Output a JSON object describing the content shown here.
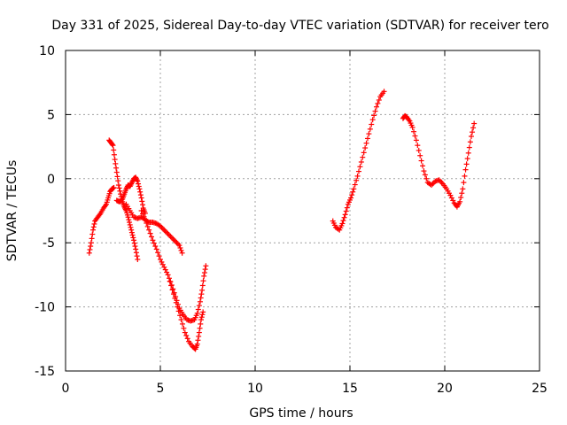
{
  "chart_data": {
    "type": "scatter",
    "title": "Day 331 of 2025, Sidereal Day-to-day VTEC variation (SDTVAR) for receiver tero",
    "xlabel": "GPS time / hours",
    "ylabel": "SDTVAR / TECUs",
    "xlim": [
      0,
      25
    ],
    "ylim": [
      -15,
      10
    ],
    "xticks": [
      0,
      5,
      10,
      15,
      20,
      25
    ],
    "yticks": [
      -15,
      -10,
      -5,
      0,
      5,
      10
    ],
    "xtick_labels": [
      "0",
      "5",
      "10",
      "15",
      "20",
      "25"
    ],
    "ytick_labels": [
      "-15",
      "-10",
      "-5",
      "0",
      "5",
      "10"
    ],
    "grid": true,
    "marker": "+",
    "color": "#ff0000",
    "series": [
      {
        "x": [
          1.25,
          1.35,
          1.45,
          1.55,
          1.7,
          1.85,
          2.0,
          2.15,
          2.25,
          2.35,
          2.45,
          2.55
        ],
        "y": [
          -5.8,
          -5.0,
          -4.0,
          -3.3,
          -3.0,
          -2.7,
          -2.3,
          -2.0,
          -1.5,
          -1.0,
          -0.8,
          -0.7
        ]
      },
      {
        "x": [
          2.3,
          2.4,
          2.5,
          2.6,
          2.7,
          2.8,
          2.9,
          3.0,
          3.1,
          3.2,
          3.3,
          3.4,
          3.5,
          3.6,
          3.7,
          3.8
        ],
        "y": [
          3.0,
          2.8,
          2.6,
          1.5,
          0.5,
          -0.5,
          -1.2,
          -1.8,
          -2.2,
          -2.5,
          -3.0,
          -3.6,
          -4.2,
          -4.8,
          -5.5,
          -6.3
        ]
      },
      {
        "x": [
          2.7,
          2.85,
          3.0,
          3.1,
          3.2,
          3.3,
          3.4,
          3.5,
          3.6,
          3.7,
          3.8,
          3.9,
          4.0,
          4.1,
          4.2
        ],
        "y": [
          -1.7,
          -1.8,
          -1.6,
          -1.2,
          -0.8,
          -0.5,
          -0.6,
          -0.3,
          0.0,
          0.1,
          -0.2,
          -0.8,
          -1.5,
          -2.3,
          -2.7
        ]
      },
      {
        "x": [
          3.2,
          3.4,
          3.6,
          3.8,
          4.0,
          4.2,
          4.4,
          4.6,
          4.8,
          5.0,
          5.2,
          5.4,
          5.6,
          5.8,
          6.0,
          6.15
        ],
        "y": [
          -2.0,
          -2.5,
          -3.0,
          -3.1,
          -3.0,
          -3.2,
          -3.4,
          -3.4,
          -3.5,
          -3.7,
          -4.0,
          -4.3,
          -4.6,
          -4.9,
          -5.2,
          -5.8
        ]
      },
      {
        "x": [
          4.0,
          4.2,
          4.4,
          4.6,
          4.8,
          5.0,
          5.2,
          5.4,
          5.6,
          5.8,
          6.0,
          6.2,
          6.4,
          6.6,
          6.8,
          6.95,
          7.1,
          7.2,
          7.3,
          7.4
        ],
        "y": [
          -2.5,
          -3.2,
          -4.0,
          -4.8,
          -5.5,
          -6.3,
          -6.9,
          -7.5,
          -8.3,
          -9.2,
          -10.1,
          -10.6,
          -11.0,
          -11.1,
          -11.0,
          -10.5,
          -9.6,
          -8.7,
          -7.6,
          -6.8
        ]
      },
      {
        "x": [
          5.5,
          5.7,
          5.9,
          6.1,
          6.3,
          6.5,
          6.7,
          6.85,
          6.95,
          7.05,
          7.15,
          7.25
        ],
        "y": [
          -8.0,
          -9.0,
          -10.0,
          -11.0,
          -12.0,
          -12.7,
          -13.1,
          -13.3,
          -12.9,
          -12.0,
          -11.0,
          -10.4
        ]
      },
      {
        "x": [
          14.1,
          14.25,
          14.45,
          14.6,
          14.75,
          14.9,
          15.05,
          15.2,
          15.4,
          15.6,
          15.8,
          16.0,
          16.2,
          16.4,
          16.6,
          16.8
        ],
        "y": [
          -3.3,
          -3.8,
          -4.0,
          -3.5,
          -2.8,
          -2.0,
          -1.5,
          -0.8,
          0.2,
          1.3,
          2.4,
          3.5,
          4.6,
          5.6,
          6.4,
          6.8
        ]
      },
      {
        "x": [
          17.8,
          17.9,
          18.0,
          18.15,
          18.3,
          18.5,
          18.7,
          18.9,
          19.1,
          19.3,
          19.5,
          19.7,
          19.9,
          20.1,
          20.3,
          20.5,
          20.65,
          20.8,
          20.95,
          21.1,
          21.25,
          21.4,
          21.55
        ],
        "y": [
          4.7,
          4.9,
          4.8,
          4.5,
          4.0,
          3.0,
          1.8,
          0.6,
          -0.3,
          -0.5,
          -0.2,
          -0.1,
          -0.4,
          -0.8,
          -1.3,
          -1.9,
          -2.2,
          -1.8,
          -0.8,
          0.7,
          2.0,
          3.3,
          4.3
        ]
      }
    ]
  }
}
